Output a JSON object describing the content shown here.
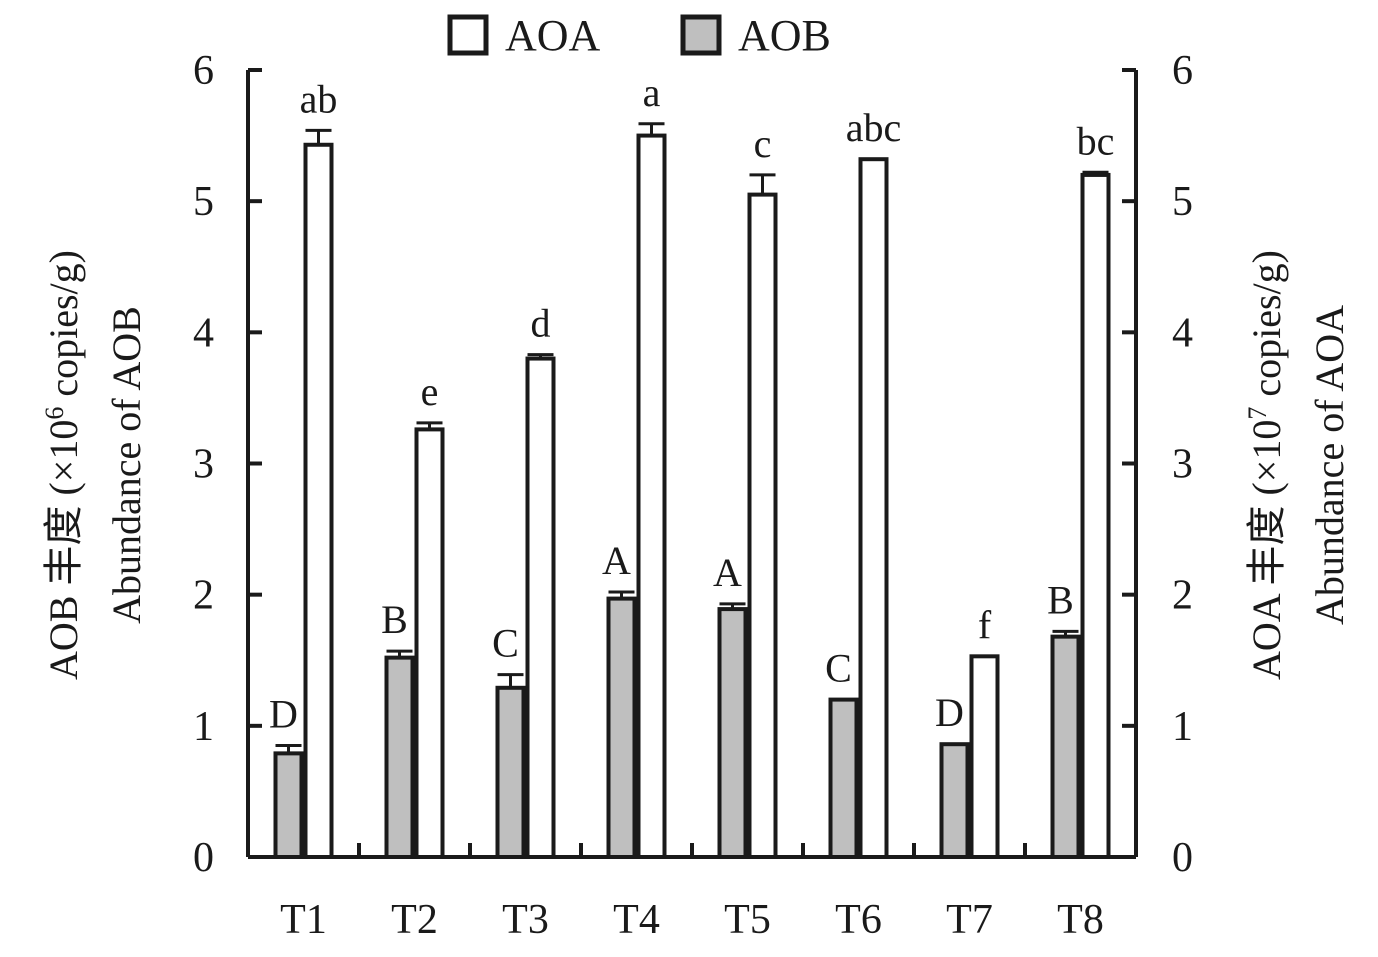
{
  "chart_data": {
    "type": "bar",
    "categories": [
      "T1",
      "T2",
      "T3",
      "T4",
      "T5",
      "T6",
      "T7",
      "T8"
    ],
    "series": [
      {
        "name": "AOB",
        "axis": "left",
        "fill": "#bfbfbf",
        "values": [
          0.79,
          1.52,
          1.29,
          1.97,
          1.89,
          1.2,
          0.86,
          1.68
        ],
        "errors": [
          0.06,
          0.05,
          0.1,
          0.05,
          0.04,
          0.0,
          0.0,
          0.04
        ],
        "letters": [
          "D",
          "B",
          "C",
          "A",
          "A",
          "C",
          "D",
          "B"
        ]
      },
      {
        "name": "AOA",
        "axis": "right",
        "fill": "#ffffff",
        "values": [
          5.43,
          3.26,
          3.8,
          5.5,
          5.05,
          5.32,
          1.53,
          5.2
        ],
        "errors": [
          0.11,
          0.05,
          0.03,
          0.09,
          0.15,
          0.0,
          0.0,
          0.02
        ],
        "letters": [
          "ab",
          "e",
          "d",
          "a",
          "c",
          "abc",
          "f",
          "bc"
        ]
      }
    ],
    "y_left": {
      "label_line1_prefix": "AOB 丰度 (×10",
      "label_line1_sup": "6",
      "label_line1_suffix": " copies/g)",
      "label_line2": "Abundance of AOB",
      "ylim": [
        0,
        6
      ],
      "ticks": [
        "0",
        "1",
        "2",
        "3",
        "4",
        "5",
        "6"
      ]
    },
    "y_right": {
      "label_line1_prefix": "AOA 丰度 (×10",
      "label_line1_sup": "7",
      "label_line1_suffix": " copies/g)",
      "label_line2": "Abundance of AOA",
      "ylim": [
        0,
        6
      ],
      "ticks": [
        "0",
        "1",
        "2",
        "3",
        "4",
        "5",
        "6"
      ]
    },
    "legend": {
      "placement": "top-center",
      "entries": [
        "AOA",
        "AOB"
      ]
    },
    "grid": false,
    "stroke_color": "#1a1a1a"
  }
}
